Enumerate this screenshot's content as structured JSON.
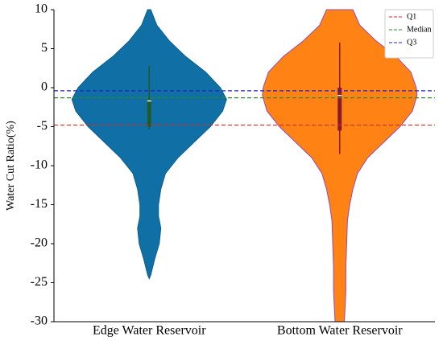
{
  "chart_data": {
    "type": "violin",
    "ylabel": "Water Cut Ratio(%)",
    "categories": [
      "Edge Water Reservoir",
      "Bottom Water Reservoir"
    ],
    "ylim": [
      -30,
      10
    ],
    "yticks": [
      -30,
      -25,
      -20,
      -15,
      -10,
      -5,
      0,
      5,
      10
    ],
    "violins": [
      {
        "color": "#106fa4",
        "edge_color": "#0d5f8c",
        "box_color": "#1e5a2a",
        "density_y": [
          10,
          8,
          6,
          4,
          2,
          0,
          -1.5,
          -3,
          -5,
          -7,
          -9,
          -11,
          -13,
          -15,
          -16.5,
          -18,
          -20,
          -22,
          -24,
          -24.5
        ],
        "density": [
          0.02,
          0.1,
          0.26,
          0.47,
          0.73,
          0.92,
          1.0,
          0.95,
          0.79,
          0.58,
          0.37,
          0.21,
          0.15,
          0.12,
          0.12,
          0.15,
          0.13,
          0.07,
          0.02,
          0
        ],
        "whisker_low": -5.3,
        "whisker_high": 2.8,
        "q1": -5,
        "median": -1.7,
        "q3": -1.5
      },
      {
        "color": "#ff8214",
        "edge_color": "#9a4ab0",
        "box_color": "#8b1a2a",
        "density_y": [
          10,
          8,
          6,
          4,
          2,
          0,
          -1,
          -3,
          -5,
          -7,
          -9,
          -11,
          -13,
          -15,
          -17,
          -20,
          -23,
          -26,
          -28,
          -30
        ],
        "density": [
          0.17,
          0.26,
          0.47,
          0.73,
          0.92,
          0.99,
          1.0,
          0.94,
          0.78,
          0.57,
          0.36,
          0.23,
          0.17,
          0.13,
          0.1,
          0.09,
          0.08,
          0.08,
          0.07,
          0.06
        ],
        "whisker_low": -8.5,
        "whisker_high": 5.8,
        "q1": -5.5,
        "median": -1,
        "q3": 0
      }
    ],
    "reference_lines": [
      {
        "name": "Q1",
        "value": -4.8,
        "color": "#d62728"
      },
      {
        "name": "Median",
        "value": -1.3,
        "color": "#2a8a2a"
      },
      {
        "name": "Q3",
        "value": -0.4,
        "color": "#2020c8"
      }
    ],
    "legend_position": "upper right"
  }
}
